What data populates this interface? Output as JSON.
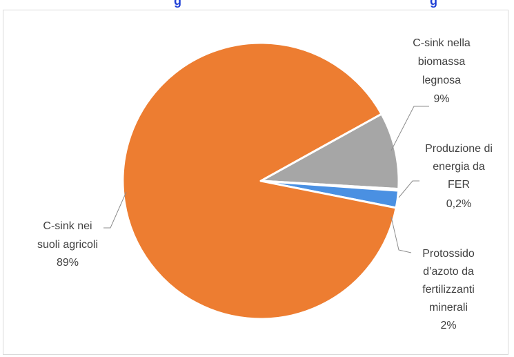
{
  "header_fragment": {
    "left_text": "g",
    "right_text": "g"
  },
  "chart_data": {
    "type": "pie",
    "title": "",
    "start_angle_deg": 29,
    "slices": [
      {
        "label_lines": [
          "C-sink nella",
          "biomassa",
          "legnosa"
        ],
        "value_label": "9%",
        "value": 9,
        "color": "#a6a6a6"
      },
      {
        "label_lines": [
          "Produzione di",
          "energia da",
          "FER"
        ],
        "value_label": "0,2%",
        "value": 0.2,
        "color": "#a6a6a6"
      },
      {
        "label_lines": [
          "Protossido",
          "d’azoto da",
          "fertilizzanti",
          "minerali"
        ],
        "value_label": "2%",
        "value": 2,
        "color": "#4a90e2"
      },
      {
        "label_lines": [
          "C-sink nei",
          "suoli agricoli"
        ],
        "value_label": "89%",
        "value": 89,
        "color": "#ed7d31"
      }
    ]
  }
}
